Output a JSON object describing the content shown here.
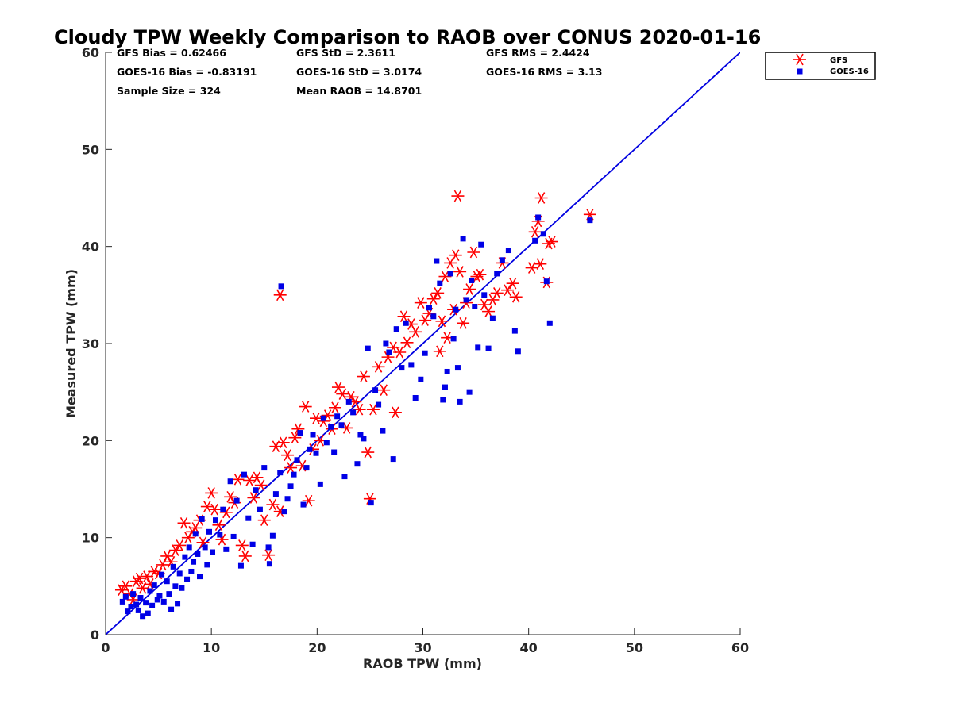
{
  "chart_data": {
    "type": "scatter",
    "title": "Cloudy TPW Weekly Comparison to RAOB over CONUS 2020-01-16",
    "xlabel": "RAOB TPW (mm)",
    "ylabel": "Measured TPW (mm)",
    "xlim": [
      0,
      60
    ],
    "ylim": [
      0,
      60
    ],
    "xticks": [
      "0",
      "10",
      "20",
      "30",
      "40",
      "50",
      "60"
    ],
    "yticks": [
      "0",
      "10",
      "20",
      "30",
      "40",
      "50",
      "60"
    ],
    "grid": false,
    "legend_position": "top-right, outside plot",
    "reference_line": {
      "type": "one-to-one",
      "x": [
        0,
        60
      ],
      "y": [
        0,
        60
      ],
      "color": "#0000e0"
    },
    "stats": {
      "gfs_bias": "GFS Bias = 0.62466",
      "goes_bias": "GOES-16 Bias = -0.83191",
      "sample_size": "Sample Size = 324",
      "gfs_std": "GFS StD = 2.3611",
      "goes_std": "GOES-16 StD = 3.0174",
      "mean_raob": "Mean RAOB = 14.8701",
      "gfs_rms": "GFS RMS = 2.4424",
      "goes_rms": "GOES-16 RMS = 3.13"
    },
    "series": [
      {
        "name": "GFS",
        "marker": "asterisk",
        "color": "#ff0000",
        "points": [
          [
            1.5,
            4.6
          ],
          [
            1.9,
            5.0
          ],
          [
            2.3,
            4.2
          ],
          [
            2.6,
            3.6
          ],
          [
            2.9,
            5.5
          ],
          [
            3.2,
            5.8
          ],
          [
            3.5,
            4.8
          ],
          [
            3.9,
            6.0
          ],
          [
            4.2,
            5.2
          ],
          [
            4.6,
            6.5
          ],
          [
            5.0,
            6.3
          ],
          [
            5.4,
            7.2
          ],
          [
            5.8,
            8.1
          ],
          [
            6.2,
            7.5
          ],
          [
            6.6,
            8.7
          ],
          [
            7.0,
            9.2
          ],
          [
            7.4,
            11.5
          ],
          [
            7.8,
            10.0
          ],
          [
            8.2,
            10.6
          ],
          [
            8.5,
            11.0
          ],
          [
            8.9,
            11.8
          ],
          [
            9.2,
            9.5
          ],
          [
            9.6,
            13.2
          ],
          [
            10.0,
            14.6
          ],
          [
            10.3,
            12.9
          ],
          [
            10.7,
            11.3
          ],
          [
            11.0,
            9.8
          ],
          [
            11.4,
            12.6
          ],
          [
            11.8,
            14.2
          ],
          [
            12.2,
            13.6
          ],
          [
            12.5,
            16.0
          ],
          [
            12.9,
            9.2
          ],
          [
            13.2,
            8.1
          ],
          [
            13.6,
            15.9
          ],
          [
            14.0,
            14.1
          ],
          [
            14.3,
            16.2
          ],
          [
            14.7,
            15.4
          ],
          [
            15.0,
            11.8
          ],
          [
            15.4,
            8.2
          ],
          [
            15.8,
            13.4
          ],
          [
            16.1,
            19.4
          ],
          [
            16.5,
            12.7
          ],
          [
            16.5,
            35.0
          ],
          [
            16.8,
            19.8
          ],
          [
            17.2,
            18.5
          ],
          [
            17.5,
            17.2
          ],
          [
            17.9,
            20.3
          ],
          [
            18.2,
            21.2
          ],
          [
            18.6,
            17.4
          ],
          [
            18.9,
            23.5
          ],
          [
            19.2,
            13.8
          ],
          [
            19.6,
            19.1
          ],
          [
            19.9,
            22.3
          ],
          [
            20.3,
            20.0
          ],
          [
            20.6,
            22.0
          ],
          [
            21.0,
            22.6
          ],
          [
            21.4,
            21.2
          ],
          [
            21.7,
            23.4
          ],
          [
            22.0,
            25.5
          ],
          [
            22.4,
            24.8
          ],
          [
            22.8,
            21.3
          ],
          [
            23.2,
            24.5
          ],
          [
            23.6,
            24.0
          ],
          [
            24.0,
            23.2
          ],
          [
            24.4,
            26.6
          ],
          [
            24.8,
            18.8
          ],
          [
            25.0,
            14.0
          ],
          [
            25.3,
            23.2
          ],
          [
            25.8,
            27.6
          ],
          [
            26.3,
            25.2
          ],
          [
            26.7,
            28.6
          ],
          [
            27.2,
            29.6
          ],
          [
            27.4,
            22.9
          ],
          [
            27.8,
            29.1
          ],
          [
            28.2,
            32.8
          ],
          [
            28.5,
            30.1
          ],
          [
            28.9,
            32.0
          ],
          [
            29.3,
            31.2
          ],
          [
            29.8,
            34.2
          ],
          [
            30.2,
            32.4
          ],
          [
            30.6,
            33.1
          ],
          [
            31.0,
            34.6
          ],
          [
            31.4,
            35.2
          ],
          [
            31.6,
            29.2
          ],
          [
            31.8,
            32.3
          ],
          [
            32.1,
            36.9
          ],
          [
            32.3,
            30.6
          ],
          [
            32.6,
            38.3
          ],
          [
            32.9,
            33.5
          ],
          [
            33.1,
            39.1
          ],
          [
            33.3,
            45.2
          ],
          [
            33.5,
            37.4
          ],
          [
            33.8,
            32.1
          ],
          [
            34.1,
            34.2
          ],
          [
            34.4,
            35.6
          ],
          [
            34.8,
            39.4
          ],
          [
            35.1,
            36.9
          ],
          [
            35.4,
            37.1
          ],
          [
            35.8,
            34.0
          ],
          [
            36.2,
            33.3
          ],
          [
            36.6,
            34.5
          ],
          [
            37.0,
            35.2
          ],
          [
            37.5,
            38.3
          ],
          [
            38.0,
            35.5
          ],
          [
            38.5,
            36.2
          ],
          [
            38.8,
            34.8
          ],
          [
            40.3,
            37.8
          ],
          [
            40.6,
            41.5
          ],
          [
            40.9,
            42.6
          ],
          [
            41.1,
            38.2
          ],
          [
            41.2,
            45.0
          ],
          [
            41.7,
            36.3
          ],
          [
            41.9,
            40.3
          ],
          [
            42.2,
            40.5
          ],
          [
            45.8,
            43.3
          ]
        ]
      },
      {
        "name": "GOES-16",
        "marker": "square",
        "color": "#0000e6",
        "points": [
          [
            1.6,
            3.4
          ],
          [
            1.9,
            3.9
          ],
          [
            2.1,
            2.4
          ],
          [
            2.4,
            2.9
          ],
          [
            2.6,
            4.2
          ],
          [
            2.9,
            3.1
          ],
          [
            3.1,
            2.5
          ],
          [
            3.3,
            3.8
          ],
          [
            3.5,
            1.9
          ],
          [
            3.8,
            3.3
          ],
          [
            4.0,
            2.2
          ],
          [
            4.2,
            4.5
          ],
          [
            4.4,
            3.0
          ],
          [
            4.6,
            5.1
          ],
          [
            4.9,
            3.6
          ],
          [
            5.1,
            4.0
          ],
          [
            5.3,
            6.2
          ],
          [
            5.5,
            3.4
          ],
          [
            5.8,
            5.5
          ],
          [
            6.0,
            4.2
          ],
          [
            6.2,
            2.6
          ],
          [
            6.4,
            7.0
          ],
          [
            6.6,
            5.0
          ],
          [
            6.8,
            3.2
          ],
          [
            7.0,
            6.3
          ],
          [
            7.2,
            4.8
          ],
          [
            7.5,
            8.0
          ],
          [
            7.7,
            5.7
          ],
          [
            7.9,
            9.0
          ],
          [
            8.1,
            6.5
          ],
          [
            8.3,
            7.5
          ],
          [
            8.5,
            10.4
          ],
          [
            8.7,
            8.3
          ],
          [
            8.9,
            6.0
          ],
          [
            9.1,
            11.9
          ],
          [
            9.4,
            9.0
          ],
          [
            9.6,
            7.2
          ],
          [
            9.8,
            10.6
          ],
          [
            10.1,
            8.5
          ],
          [
            10.4,
            11.8
          ],
          [
            10.8,
            10.3
          ],
          [
            11.1,
            12.9
          ],
          [
            11.4,
            8.8
          ],
          [
            11.8,
            15.8
          ],
          [
            12.1,
            10.1
          ],
          [
            12.4,
            13.8
          ],
          [
            12.8,
            7.1
          ],
          [
            13.1,
            16.5
          ],
          [
            13.5,
            12.0
          ],
          [
            13.9,
            9.3
          ],
          [
            14.2,
            14.9
          ],
          [
            14.6,
            12.9
          ],
          [
            15.0,
            17.2
          ],
          [
            15.4,
            9.0
          ],
          [
            15.5,
            7.3
          ],
          [
            15.8,
            10.2
          ],
          [
            16.1,
            14.5
          ],
          [
            16.5,
            16.7
          ],
          [
            16.6,
            35.9
          ],
          [
            16.9,
            12.7
          ],
          [
            17.2,
            14.0
          ],
          [
            17.5,
            15.3
          ],
          [
            17.8,
            16.5
          ],
          [
            18.1,
            18.0
          ],
          [
            18.4,
            20.8
          ],
          [
            18.7,
            13.4
          ],
          [
            19.0,
            17.2
          ],
          [
            19.3,
            19.1
          ],
          [
            19.6,
            20.6
          ],
          [
            19.9,
            18.7
          ],
          [
            20.3,
            15.5
          ],
          [
            20.6,
            22.3
          ],
          [
            20.9,
            19.8
          ],
          [
            21.3,
            21.4
          ],
          [
            21.6,
            18.8
          ],
          [
            21.9,
            22.5
          ],
          [
            22.3,
            21.6
          ],
          [
            22.6,
            16.3
          ],
          [
            23.0,
            24.0
          ],
          [
            23.4,
            22.9
          ],
          [
            23.8,
            17.6
          ],
          [
            24.1,
            20.6
          ],
          [
            24.4,
            20.2
          ],
          [
            24.8,
            29.5
          ],
          [
            25.1,
            13.6
          ],
          [
            25.5,
            25.2
          ],
          [
            25.8,
            23.7
          ],
          [
            26.2,
            21.0
          ],
          [
            26.5,
            30.0
          ],
          [
            26.8,
            29.1
          ],
          [
            27.2,
            18.1
          ],
          [
            27.5,
            31.5
          ],
          [
            28.0,
            27.5
          ],
          [
            28.4,
            32.1
          ],
          [
            28.9,
            27.8
          ],
          [
            29.3,
            24.4
          ],
          [
            29.8,
            26.3
          ],
          [
            30.2,
            29.0
          ],
          [
            30.6,
            33.7
          ],
          [
            31.0,
            32.8
          ],
          [
            31.3,
            38.5
          ],
          [
            31.6,
            36.2
          ],
          [
            31.9,
            24.2
          ],
          [
            32.1,
            25.5
          ],
          [
            32.3,
            27.1
          ],
          [
            32.6,
            37.2
          ],
          [
            32.9,
            30.5
          ],
          [
            33.1,
            33.5
          ],
          [
            33.3,
            27.5
          ],
          [
            33.5,
            24.0
          ],
          [
            33.8,
            40.8
          ],
          [
            34.1,
            34.5
          ],
          [
            34.4,
            25.0
          ],
          [
            34.6,
            36.5
          ],
          [
            34.9,
            33.8
          ],
          [
            35.2,
            29.6
          ],
          [
            35.5,
            40.2
          ],
          [
            35.8,
            35.0
          ],
          [
            36.2,
            29.5
          ],
          [
            36.6,
            32.6
          ],
          [
            37.0,
            37.2
          ],
          [
            37.5,
            38.6
          ],
          [
            38.1,
            39.6
          ],
          [
            38.7,
            31.3
          ],
          [
            39.0,
            29.2
          ],
          [
            40.6,
            40.6
          ],
          [
            40.9,
            43.0
          ],
          [
            41.4,
            41.3
          ],
          [
            41.7,
            36.4
          ],
          [
            42.0,
            32.1
          ],
          [
            45.8,
            42.7
          ]
        ]
      }
    ]
  }
}
